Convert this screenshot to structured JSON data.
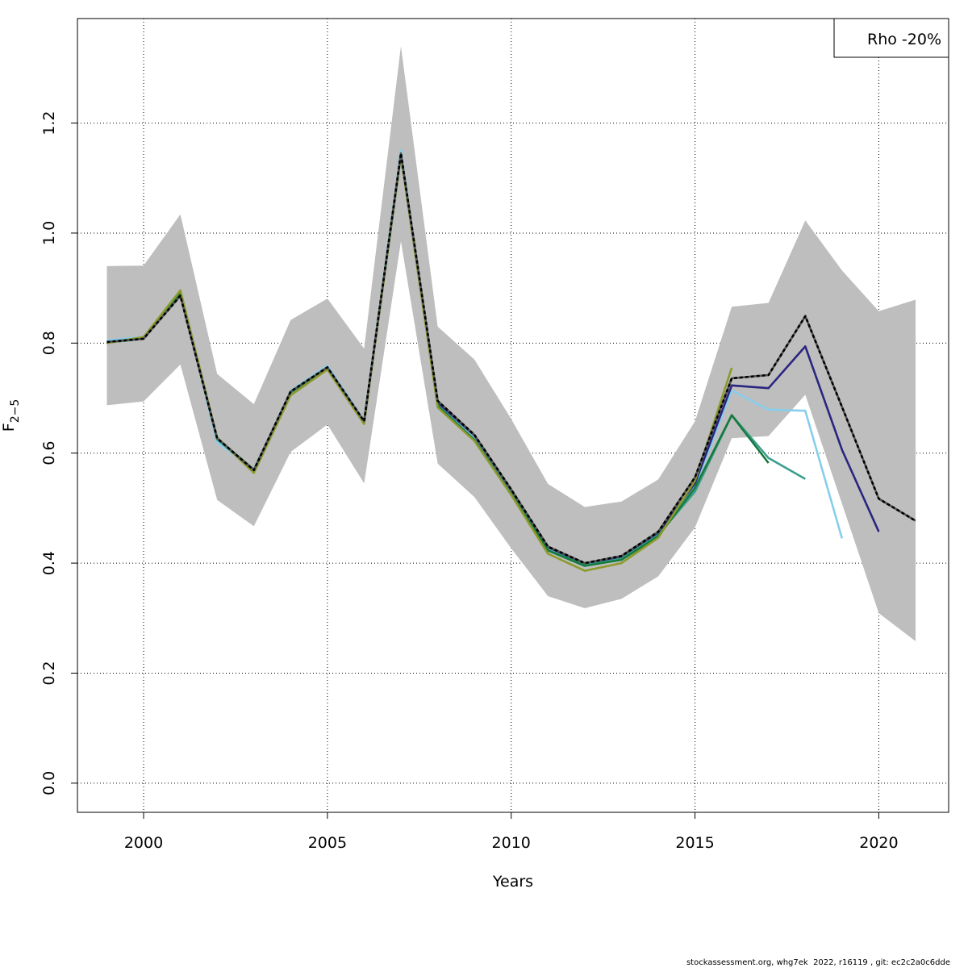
{
  "chart_data": {
    "type": "line",
    "xlabel": "Years",
    "ylabel_main": "F",
    "ylabel_sub": "2−5",
    "xlim": [
      1998.2,
      2021.9
    ],
    "ylim": [
      -0.053,
      1.39
    ],
    "x_ticks": [
      2000,
      2005,
      2010,
      2015,
      2020
    ],
    "y_ticks": [
      0.0,
      0.2,
      0.4,
      0.6,
      0.8,
      1.0,
      1.2
    ],
    "y_tick_labels": [
      "0.0",
      "0.2",
      "0.4",
      "0.6",
      "0.8",
      "1.0",
      "1.2"
    ],
    "grid": "dotted",
    "legend": {
      "position": "top-right",
      "text": "Rho -20%"
    },
    "band_color": "#bebebe",
    "confidence_band": {
      "x": [
        1999,
        2000,
        2001,
        2002,
        2003,
        2004,
        2005,
        2006,
        2007,
        2008,
        2009,
        2010,
        2011,
        2012,
        2013,
        2014,
        2015,
        2016,
        2017,
        2018,
        2019,
        2020,
        2021
      ],
      "upper": [
        0.94,
        0.941,
        1.034,
        0.744,
        0.689,
        0.842,
        0.881,
        0.79,
        1.34,
        0.83,
        0.77,
        0.662,
        0.544,
        0.502,
        0.512,
        0.552,
        0.658,
        0.866,
        0.873,
        1.023,
        0.932,
        0.858,
        0.879
      ],
      "lower": [
        0.687,
        0.694,
        0.761,
        0.515,
        0.467,
        0.602,
        0.652,
        0.545,
        0.985,
        0.581,
        0.52,
        0.427,
        0.34,
        0.318,
        0.335,
        0.376,
        0.465,
        0.627,
        0.631,
        0.706,
        0.508,
        0.309,
        0.258
      ]
    },
    "series": [
      {
        "color": "#87ceeb",
        "width": 2.6,
        "dashed": false,
        "x": [
          1999,
          2000,
          2001,
          2002,
          2003,
          2004,
          2005,
          2006,
          2007,
          2008,
          2009,
          2010,
          2011,
          2012,
          2013,
          2014,
          2015,
          2016,
          2017,
          2018,
          2019
        ],
        "y": [
          0.805,
          0.811,
          0.891,
          0.62,
          0.57,
          0.713,
          0.759,
          0.659,
          1.15,
          0.688,
          0.628,
          0.528,
          0.425,
          0.396,
          0.406,
          0.45,
          0.54,
          0.714,
          0.679,
          0.677,
          0.445
        ]
      },
      {
        "color": "#2a2580",
        "width": 2.6,
        "dashed": false,
        "x": [
          1999,
          2000,
          2001,
          2002,
          2003,
          2004,
          2005,
          2006,
          2007,
          2008,
          2009,
          2010,
          2011,
          2012,
          2013,
          2014,
          2015,
          2016,
          2017,
          2018,
          2019,
          2020
        ],
        "y": [
          0.802,
          0.809,
          0.889,
          0.626,
          0.569,
          0.711,
          0.755,
          0.657,
          1.141,
          0.692,
          0.632,
          0.533,
          0.429,
          0.399,
          0.411,
          0.455,
          0.545,
          0.723,
          0.718,
          0.794,
          0.606,
          0.457
        ]
      },
      {
        "color": "#3a9e8e",
        "width": 2.6,
        "dashed": false,
        "x": [
          1999,
          2000,
          2001,
          2002,
          2003,
          2004,
          2005,
          2006,
          2007,
          2008,
          2009,
          2010,
          2011,
          2012,
          2013,
          2014,
          2015,
          2016,
          2017,
          2018
        ],
        "y": [
          0.801,
          0.808,
          0.889,
          0.625,
          0.569,
          0.71,
          0.754,
          0.656,
          1.142,
          0.687,
          0.624,
          0.526,
          0.424,
          0.396,
          0.408,
          0.451,
          0.53,
          0.669,
          0.591,
          0.553
        ]
      },
      {
        "color": "#157a3c",
        "width": 2.6,
        "dashed": false,
        "x": [
          1999,
          2000,
          2001,
          2002,
          2003,
          2004,
          2005,
          2006,
          2007,
          2008,
          2009,
          2010,
          2011,
          2012,
          2013,
          2014,
          2015,
          2016,
          2017
        ],
        "y": [
          0.801,
          0.808,
          0.89,
          0.627,
          0.57,
          0.711,
          0.755,
          0.657,
          1.141,
          0.686,
          0.624,
          0.525,
          0.423,
          0.395,
          0.406,
          0.449,
          0.537,
          0.669,
          0.582
        ]
      },
      {
        "color": "#8c9a2b",
        "width": 2.6,
        "dashed": false,
        "x": [
          1999,
          2000,
          2001,
          2002,
          2003,
          2004,
          2005,
          2006,
          2007,
          2008,
          2009,
          2010,
          2011,
          2012,
          2013,
          2014,
          2015,
          2016
        ],
        "y": [
          0.8,
          0.811,
          0.896,
          0.628,
          0.564,
          0.705,
          0.752,
          0.653,
          1.141,
          0.683,
          0.622,
          0.524,
          0.417,
          0.386,
          0.4,
          0.446,
          0.55,
          0.755
        ]
      },
      {
        "color": "#000000",
        "width": 2.6,
        "dashed": true,
        "x": [
          1999,
          2000,
          2001,
          2002,
          2003,
          2004,
          2005,
          2006,
          2007,
          2008,
          2009,
          2010,
          2011,
          2012,
          2013,
          2014,
          2015,
          2016,
          2017,
          2018,
          2019,
          2020,
          2021
        ],
        "y": [
          0.802,
          0.808,
          0.886,
          0.627,
          0.569,
          0.712,
          0.756,
          0.658,
          1.145,
          0.695,
          0.633,
          0.534,
          0.43,
          0.4,
          0.413,
          0.457,
          0.556,
          0.736,
          0.742,
          0.849,
          0.684,
          0.517,
          0.477
        ]
      }
    ]
  },
  "footer": "stockassessment.org, whg7ek  2022, r16119 , git: ec2c2a0c6dde"
}
